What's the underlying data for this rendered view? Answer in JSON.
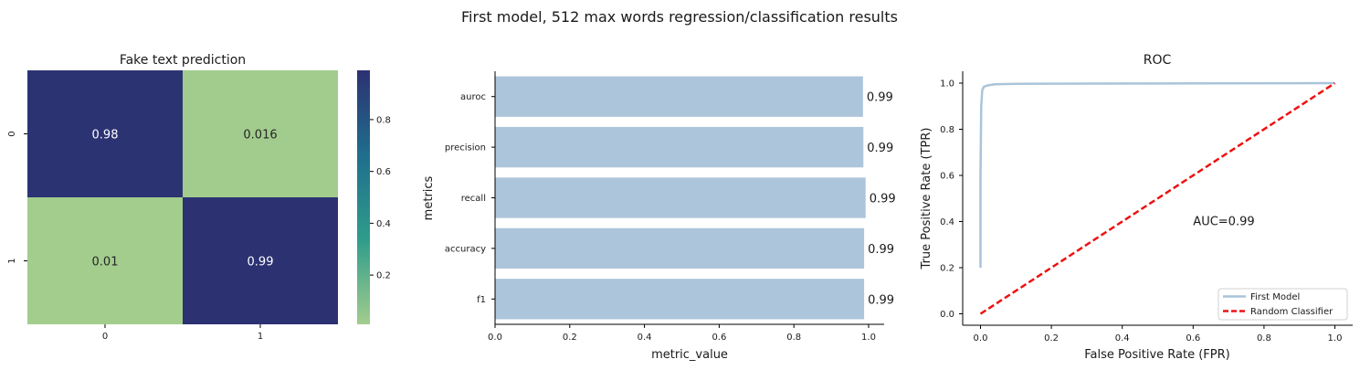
{
  "suptitle": "First model, 512 max words regression/classification results",
  "chart_data": [
    {
      "type": "heatmap",
      "title": "Fake text prediction",
      "x_categories": [
        "0",
        "1"
      ],
      "y_categories": [
        "0",
        "1"
      ],
      "values": [
        [
          0.98,
          0.016
        ],
        [
          0.01,
          0.99
        ]
      ],
      "cell_labels": [
        [
          "0.98",
          "0.016"
        ],
        [
          "0.01",
          "0.99"
        ]
      ],
      "colorbar": {
        "min": 0.01,
        "max": 0.99,
        "ticks": [
          0.2,
          0.4,
          0.6,
          0.8
        ],
        "tick_labels": [
          "0.2",
          "0.4",
          "0.6",
          "0.8"
        ]
      },
      "colormap": [
        "#a3cd8d",
        "#2f9c8b",
        "#1f6e8c",
        "#2c3172"
      ]
    },
    {
      "type": "bar",
      "orientation": "horizontal",
      "categories": [
        "auroc",
        "precision",
        "recall",
        "accuracy",
        "f1"
      ],
      "values": [
        0.985,
        0.986,
        0.992,
        0.988,
        0.988
      ],
      "value_labels": [
        "0.99",
        "0.99",
        "0.99",
        "0.99",
        "0.99"
      ],
      "xlabel": "metric_value",
      "ylabel": "metrics",
      "xlim": [
        0,
        1.0
      ],
      "xticks": [
        0.0,
        0.2,
        0.4,
        0.6,
        0.8,
        1.0
      ],
      "xtick_labels": [
        "0.0",
        "0.2",
        "0.4",
        "0.6",
        "0.8",
        "1.0"
      ],
      "color": "#adc5da"
    },
    {
      "type": "line",
      "title": "ROC",
      "xlabel": "False Positive Rate (FPR)",
      "ylabel": "True Positive Rate (TPR)",
      "xlim": [
        -0.05,
        1.05
      ],
      "ylim": [
        -0.05,
        1.05
      ],
      "xticks": [
        0.0,
        0.2,
        0.4,
        0.6,
        0.8,
        1.0
      ],
      "xtick_labels": [
        "0.0",
        "0.2",
        "0.4",
        "0.6",
        "0.8",
        "1.0"
      ],
      "yticks": [
        0.0,
        0.2,
        0.4,
        0.6,
        0.8,
        1.0
      ],
      "ytick_labels": [
        "0.0",
        "0.2",
        "0.4",
        "0.6",
        "0.8",
        "1.0"
      ],
      "annotation": {
        "text": "AUC=0.99",
        "x": 0.6,
        "y": 0.4
      },
      "legend_position": "lower-right",
      "series": [
        {
          "name": "First Model",
          "color": "#a9c4da",
          "x": [
            0.0,
            0.0,
            0.002,
            0.005,
            0.01,
            0.02,
            0.04,
            0.1,
            0.3,
            0.6,
            1.0
          ],
          "y": [
            0.2,
            0.6,
            0.9,
            0.97,
            0.985,
            0.99,
            0.995,
            0.997,
            0.998,
            0.999,
            1.0
          ]
        },
        {
          "name": "Random Classifier",
          "color": "#ee1111",
          "dashed": true,
          "x": [
            0.0,
            1.0
          ],
          "y": [
            0.0,
            1.0
          ]
        }
      ]
    }
  ]
}
